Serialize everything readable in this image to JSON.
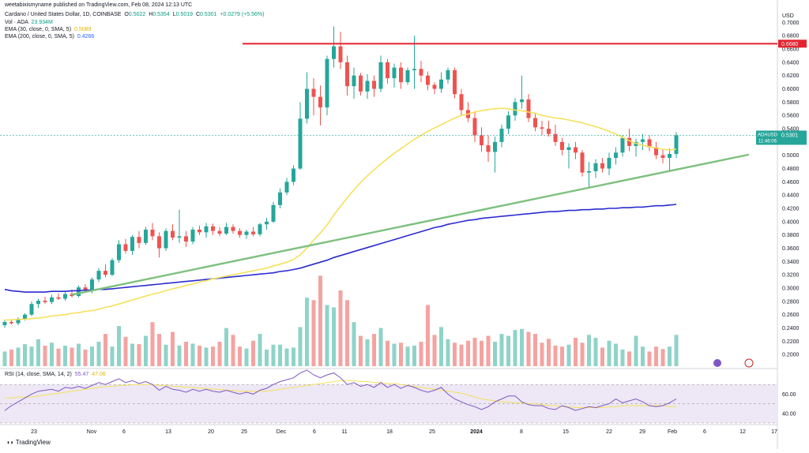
{
  "publisher_line": "weetabixismyname published on TradingView.com, Feb 08, 2024 12:13 UTC",
  "legend": {
    "main_title": "Cardano / United States Dollar, 1D, COINBASE",
    "ohlc": {
      "O": "0.5022",
      "H": "0.5354",
      "L": "0.5019",
      "C": "0.5301",
      "change": "+0.0279 (+5.56%)"
    },
    "vol": {
      "label": "Vol · ADA",
      "value": "23.934M"
    },
    "ema30": {
      "label": "EMA (30, close, 0, SMA, 5)",
      "value": "0.5089"
    },
    "ema200": {
      "label": "EMA (200, close, 0, SMA, 5)",
      "value": "0.4266"
    },
    "rsi": {
      "label": "RSI (14, close, SMA, 14, 2)",
      "value1": "55.47",
      "value2": "47.06"
    }
  },
  "currency_label": "USD",
  "price_badge": {
    "ticker": "ADAUSD",
    "price": "0.5301",
    "countdown": "11:46:06"
  },
  "resistance_badge": "0.6680",
  "brand": "TradingView",
  "colors": {
    "up": "#26a69a",
    "down": "#ef5350",
    "ema30": "#f5e15a",
    "ema200": "#2b2bd1",
    "resistance": "#e2232f",
    "trend": "#7ec07e",
    "rsi": "#7e57c2"
  },
  "chart_data": {
    "type": "candlestick",
    "title": "Cardano / United States Dollar, 1D, COINBASE",
    "y_axis": {
      "label": "USD",
      "range": [
        0.18,
        0.71
      ],
      "ticks": [
        "0.7000",
        "0.6800",
        "0.6600",
        "0.6400",
        "0.6200",
        "0.6000",
        "0.5800",
        "0.5600",
        "0.5400",
        "0.5200",
        "0.5000",
        "0.4800",
        "0.4600",
        "0.4400",
        "0.4200",
        "0.4000",
        "0.3800",
        "0.3600",
        "0.3400",
        "0.3200",
        "0.3000",
        "0.2800",
        "0.2600",
        "0.2400",
        "0.2200",
        "0.2000"
      ]
    },
    "x_axis": {
      "ticks": [
        "23",
        "Nov",
        "6",
        "13",
        "20",
        "25",
        "Dec",
        "6",
        "11",
        "18",
        "25",
        "2024",
        "8",
        "15",
        "22",
        "29",
        "Feb",
        "6",
        "12",
        "17"
      ]
    },
    "candles": [
      [
        0.244,
        0.252,
        0.24,
        0.249
      ],
      [
        0.249,
        0.253,
        0.245,
        0.247
      ],
      [
        0.247,
        0.256,
        0.244,
        0.253
      ],
      [
        0.253,
        0.262,
        0.251,
        0.26
      ],
      [
        0.26,
        0.28,
        0.258,
        0.276
      ],
      [
        0.276,
        0.284,
        0.27,
        0.281
      ],
      [
        0.281,
        0.287,
        0.276,
        0.279
      ],
      [
        0.279,
        0.29,
        0.276,
        0.286
      ],
      [
        0.286,
        0.292,
        0.282,
        0.284
      ],
      [
        0.284,
        0.294,
        0.281,
        0.291
      ],
      [
        0.291,
        0.298,
        0.286,
        0.288
      ],
      [
        0.288,
        0.304,
        0.286,
        0.301
      ],
      [
        0.301,
        0.306,
        0.293,
        0.296
      ],
      [
        0.296,
        0.316,
        0.292,
        0.313
      ],
      [
        0.313,
        0.33,
        0.309,
        0.326
      ],
      [
        0.326,
        0.336,
        0.316,
        0.32
      ],
      [
        0.32,
        0.345,
        0.318,
        0.342
      ],
      [
        0.342,
        0.372,
        0.338,
        0.366
      ],
      [
        0.366,
        0.374,
        0.352,
        0.356
      ],
      [
        0.356,
        0.38,
        0.35,
        0.377
      ],
      [
        0.377,
        0.386,
        0.36,
        0.368
      ],
      [
        0.368,
        0.392,
        0.365,
        0.388
      ],
      [
        0.388,
        0.398,
        0.372,
        0.378
      ],
      [
        0.378,
        0.384,
        0.346,
        0.36
      ],
      [
        0.36,
        0.39,
        0.356,
        0.386
      ],
      [
        0.386,
        0.396,
        0.372,
        0.376
      ],
      [
        0.376,
        0.418,
        0.368,
        0.378
      ],
      [
        0.378,
        0.386,
        0.362,
        0.37
      ],
      [
        0.37,
        0.392,
        0.366,
        0.388
      ],
      [
        0.388,
        0.394,
        0.38,
        0.384
      ],
      [
        0.384,
        0.398,
        0.376,
        0.393
      ],
      [
        0.393,
        0.397,
        0.38,
        0.386
      ],
      [
        0.386,
        0.392,
        0.378,
        0.382
      ],
      [
        0.382,
        0.398,
        0.38,
        0.392
      ],
      [
        0.392,
        0.396,
        0.382,
        0.386
      ],
      [
        0.386,
        0.39,
        0.376,
        0.38
      ],
      [
        0.38,
        0.388,
        0.374,
        0.385
      ],
      [
        0.385,
        0.392,
        0.378,
        0.381
      ],
      [
        0.381,
        0.398,
        0.378,
        0.396
      ],
      [
        0.396,
        0.406,
        0.388,
        0.4
      ],
      [
        0.4,
        0.43,
        0.398,
        0.425
      ],
      [
        0.425,
        0.45,
        0.42,
        0.444
      ],
      [
        0.444,
        0.466,
        0.44,
        0.46
      ],
      [
        0.46,
        0.485,
        0.455,
        0.48
      ],
      [
        0.48,
        0.58,
        0.478,
        0.555
      ],
      [
        0.555,
        0.625,
        0.548,
        0.6
      ],
      [
        0.6,
        0.616,
        0.56,
        0.588
      ],
      [
        0.588,
        0.605,
        0.545,
        0.572
      ],
      [
        0.572,
        0.65,
        0.56,
        0.645
      ],
      [
        0.645,
        0.694,
        0.632,
        0.664
      ],
      [
        0.664,
        0.686,
        0.63,
        0.64
      ],
      [
        0.64,
        0.65,
        0.59,
        0.604
      ],
      [
        0.604,
        0.632,
        0.585,
        0.62
      ],
      [
        0.62,
        0.624,
        0.59,
        0.596
      ],
      [
        0.596,
        0.622,
        0.585,
        0.612
      ],
      [
        0.612,
        0.62,
        0.588,
        0.6
      ],
      [
        0.6,
        0.65,
        0.595,
        0.64
      ],
      [
        0.64,
        0.645,
        0.608,
        0.616
      ],
      [
        0.616,
        0.638,
        0.602,
        0.632
      ],
      [
        0.632,
        0.64,
        0.6,
        0.61
      ],
      [
        0.61,
        0.632,
        0.606,
        0.628
      ],
      [
        0.628,
        0.68,
        0.6,
        0.63
      ],
      [
        0.63,
        0.642,
        0.61,
        0.62
      ],
      [
        0.62,
        0.626,
        0.598,
        0.606
      ],
      [
        0.606,
        0.61,
        0.592,
        0.6
      ],
      [
        0.6,
        0.625,
        0.594,
        0.614
      ],
      [
        0.614,
        0.632,
        0.608,
        0.628
      ],
      [
        0.628,
        0.632,
        0.586,
        0.592
      ],
      [
        0.592,
        0.6,
        0.56,
        0.568
      ],
      [
        0.568,
        0.58,
        0.55,
        0.556
      ],
      [
        0.556,
        0.566,
        0.52,
        0.53
      ],
      [
        0.53,
        0.542,
        0.505,
        0.515
      ],
      [
        0.515,
        0.53,
        0.49,
        0.505
      ],
      [
        0.505,
        0.528,
        0.474,
        0.52
      ],
      [
        0.52,
        0.546,
        0.512,
        0.54
      ],
      [
        0.54,
        0.566,
        0.532,
        0.56
      ],
      [
        0.56,
        0.586,
        0.552,
        0.58
      ],
      [
        0.58,
        0.62,
        0.57,
        0.584
      ],
      [
        0.584,
        0.592,
        0.55,
        0.556
      ],
      [
        0.556,
        0.562,
        0.536,
        0.542
      ],
      [
        0.542,
        0.552,
        0.53,
        0.54
      ],
      [
        0.54,
        0.552,
        0.528,
        0.532
      ],
      [
        0.532,
        0.546,
        0.514,
        0.52
      ],
      [
        0.52,
        0.526,
        0.5,
        0.508
      ],
      [
        0.508,
        0.518,
        0.48,
        0.512
      ],
      [
        0.512,
        0.52,
        0.494,
        0.504
      ],
      [
        0.504,
        0.508,
        0.468,
        0.474
      ],
      [
        0.474,
        0.49,
        0.45,
        0.476
      ],
      [
        0.476,
        0.494,
        0.466,
        0.488
      ],
      [
        0.488,
        0.496,
        0.474,
        0.48
      ],
      [
        0.48,
        0.504,
        0.47,
        0.496
      ],
      [
        0.496,
        0.512,
        0.486,
        0.504
      ],
      [
        0.504,
        0.53,
        0.498,
        0.526
      ],
      [
        0.526,
        0.54,
        0.506,
        0.514
      ],
      [
        0.514,
        0.525,
        0.498,
        0.52
      ],
      [
        0.52,
        0.532,
        0.508,
        0.524
      ],
      [
        0.524,
        0.53,
        0.506,
        0.512
      ],
      [
        0.512,
        0.52,
        0.494,
        0.5
      ],
      [
        0.5,
        0.508,
        0.488,
        0.496
      ],
      [
        0.496,
        0.51,
        0.476,
        0.502
      ],
      [
        0.502,
        0.535,
        0.496,
        0.53
      ]
    ],
    "ema30": [
      0.252,
      0.252,
      0.253,
      0.253,
      0.254,
      0.255,
      0.256,
      0.258,
      0.259,
      0.26,
      0.262,
      0.263,
      0.265,
      0.266,
      0.268,
      0.271,
      0.273,
      0.276,
      0.279,
      0.282,
      0.285,
      0.288,
      0.291,
      0.293,
      0.296,
      0.299,
      0.301,
      0.304,
      0.306,
      0.309,
      0.311,
      0.314,
      0.316,
      0.318,
      0.32,
      0.322,
      0.324,
      0.326,
      0.328,
      0.33,
      0.333,
      0.336,
      0.339,
      0.343,
      0.35,
      0.36,
      0.372,
      0.383,
      0.395,
      0.41,
      0.423,
      0.436,
      0.448,
      0.459,
      0.469,
      0.478,
      0.487,
      0.495,
      0.503,
      0.51,
      0.517,
      0.524,
      0.53,
      0.536,
      0.541,
      0.546,
      0.551,
      0.556,
      0.56,
      0.562,
      0.565,
      0.567,
      0.569,
      0.57,
      0.571,
      0.57,
      0.568,
      0.567,
      0.565,
      0.563,
      0.56,
      0.558,
      0.556,
      0.555,
      0.553,
      0.551,
      0.549,
      0.546,
      0.543,
      0.54,
      0.536,
      0.532,
      0.527,
      0.522,
      0.518,
      0.515,
      0.513,
      0.511,
      0.509,
      0.508,
      0.509
    ],
    "ema200": [
      0.298,
      0.296,
      0.295,
      0.294,
      0.294,
      0.294,
      0.294,
      0.295,
      0.295,
      0.295,
      0.296,
      0.296,
      0.297,
      0.297,
      0.298,
      0.298,
      0.299,
      0.3,
      0.301,
      0.302,
      0.303,
      0.304,
      0.305,
      0.306,
      0.307,
      0.308,
      0.309,
      0.31,
      0.311,
      0.312,
      0.313,
      0.314,
      0.315,
      0.316,
      0.317,
      0.318,
      0.319,
      0.32,
      0.321,
      0.322,
      0.323,
      0.325,
      0.326,
      0.328,
      0.33,
      0.333,
      0.336,
      0.339,
      0.342,
      0.346,
      0.349,
      0.352,
      0.355,
      0.358,
      0.361,
      0.364,
      0.367,
      0.37,
      0.373,
      0.376,
      0.379,
      0.382,
      0.385,
      0.388,
      0.391,
      0.393,
      0.396,
      0.398,
      0.4,
      0.402,
      0.403,
      0.405,
      0.406,
      0.407,
      0.408,
      0.409,
      0.41,
      0.411,
      0.412,
      0.413,
      0.414,
      0.415,
      0.415,
      0.416,
      0.417,
      0.417,
      0.418,
      0.418,
      0.419,
      0.419,
      0.42,
      0.42,
      0.421,
      0.421,
      0.422,
      0.422,
      0.423,
      0.424,
      0.424,
      0.425,
      0.426
    ],
    "volume": [
      0.3,
      0.34,
      0.38,
      0.45,
      0.4,
      0.55,
      0.42,
      0.48,
      0.36,
      0.42,
      0.38,
      0.46,
      0.34,
      0.4,
      0.5,
      0.66,
      0.4,
      0.82,
      0.6,
      0.46,
      0.45,
      0.62,
      0.9,
      0.66,
      0.44,
      0.7,
      0.42,
      0.5,
      0.46,
      0.42,
      0.38,
      0.4,
      0.5,
      0.78,
      0.64,
      0.4,
      0.36,
      0.52,
      0.66,
      0.34,
      0.44,
      0.44,
      0.36,
      0.38,
      0.8,
      1.4,
      1.35,
      1.85,
      1.25,
      1.2,
      1.55,
      1.35,
      0.9,
      0.62,
      0.55,
      0.66,
      0.78,
      0.52,
      0.46,
      0.48,
      0.4,
      0.42,
      0.5,
      1.25,
      0.64,
      0.8,
      0.55,
      0.48,
      0.44,
      0.52,
      0.58,
      0.52,
      0.62,
      0.5,
      0.66,
      0.62,
      0.74,
      0.76,
      0.7,
      0.66,
      0.48,
      0.56,
      0.42,
      0.4,
      0.44,
      0.58,
      0.48,
      0.64,
      0.58,
      0.38,
      0.52,
      0.46,
      0.34,
      0.3,
      0.62,
      0.4,
      0.3,
      0.4,
      0.35,
      0.4,
      0.64
    ],
    "rsi": [
      43,
      48,
      52,
      56,
      60,
      63,
      64,
      65,
      63,
      67,
      66,
      68,
      66,
      69,
      72,
      70,
      73,
      76,
      72,
      74,
      71,
      73,
      70,
      64,
      68,
      65,
      64,
      62,
      65,
      63,
      65,
      63,
      62,
      64,
      62,
      60,
      62,
      60,
      64,
      66,
      70,
      73,
      75,
      77,
      82,
      85,
      80,
      77,
      80,
      82,
      77,
      70,
      72,
      68,
      70,
      67,
      72,
      67,
      70,
      66,
      69,
      67,
      64,
      62,
      64,
      67,
      60,
      55,
      52,
      49,
      47,
      44,
      47,
      52,
      55,
      58,
      58,
      52,
      49,
      48,
      48,
      45,
      44,
      48,
      46,
      43,
      45,
      47,
      46,
      48,
      50,
      55,
      51,
      53,
      55,
      52,
      48,
      47,
      48,
      51,
      55
    ],
    "rsi_ma": [
      56,
      56,
      57,
      57,
      57,
      58,
      59,
      60,
      61,
      62,
      63,
      64,
      65,
      66,
      67,
      68,
      68,
      69,
      69,
      70,
      70,
      70,
      70,
      69,
      69,
      68,
      68,
      67,
      67,
      66,
      66,
      65,
      65,
      64,
      64,
      63,
      63,
      63,
      63,
      63,
      64,
      65,
      66,
      67,
      68,
      69,
      70,
      71,
      72,
      73,
      74,
      74,
      74,
      73,
      73,
      72,
      72,
      71,
      71,
      70,
      69,
      68,
      67,
      66,
      65,
      64,
      63,
      62,
      61,
      59,
      57,
      55,
      54,
      53,
      52,
      52,
      51,
      51,
      50,
      50,
      49,
      48,
      48,
      47,
      47,
      46,
      46,
      46,
      46,
      46,
      47,
      47,
      48,
      48,
      48,
      48,
      48,
      48,
      48,
      47,
      47
    ],
    "rsi_axis": {
      "range": [
        30,
        80
      ],
      "ticks": [
        "60.00",
        "40.00"
      ],
      "band": [
        30,
        70
      ]
    },
    "resistance": 0.668,
    "trendline": [
      [
        18,
        0.29
      ],
      [
        190,
        0.501
      ]
    ]
  }
}
